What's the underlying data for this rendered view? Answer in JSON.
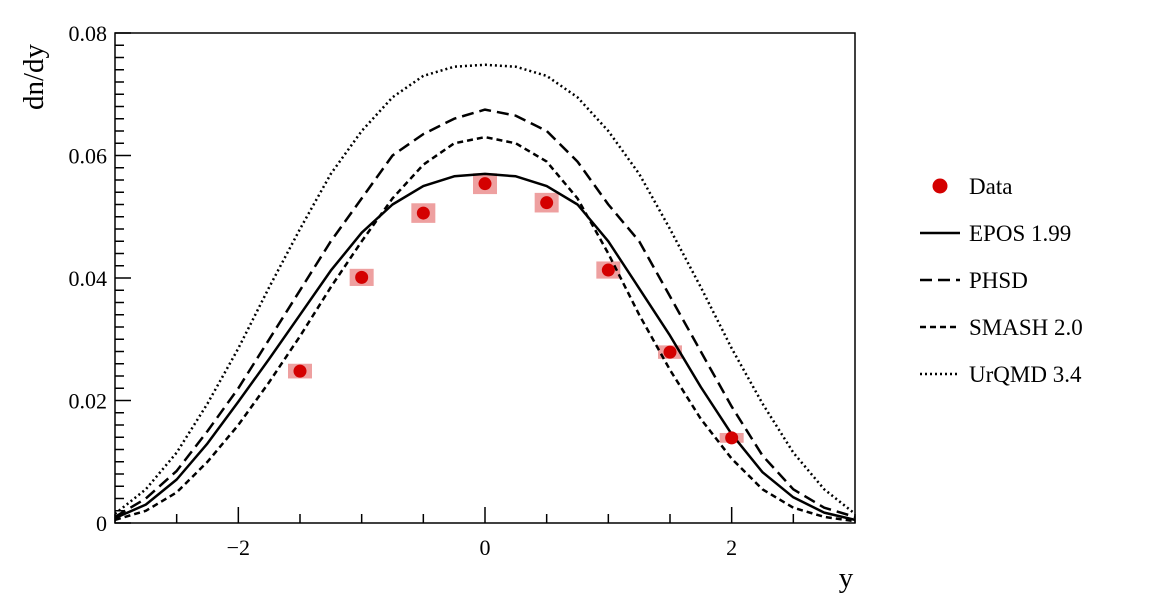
{
  "chart_data": {
    "type": "line",
    "xlabel": "y",
    "ylabel": "dn/dy",
    "xlim": [
      -3,
      3
    ],
    "ylim": [
      0,
      0.08
    ],
    "x_ticks": [
      {
        "value": -2,
        "label": "−2"
      },
      {
        "value": 0,
        "label": "0"
      },
      {
        "value": 2,
        "label": "2"
      }
    ],
    "y_ticks": [
      {
        "value": 0,
        "label": "0"
      },
      {
        "value": 0.02,
        "label": "0.02"
      },
      {
        "value": 0.04,
        "label": "0.04"
      },
      {
        "value": 0.06,
        "label": "0.06"
      },
      {
        "value": 0.08,
        "label": "0.08"
      }
    ],
    "points": {
      "name": "Data",
      "color": "#d40000",
      "syst_color": "#eea0a0",
      "x": [
        -1.5,
        -1.0,
        -0.5,
        0.0,
        0.5,
        1.0,
        1.5,
        2.0
      ],
      "y": [
        0.0248,
        0.0401,
        0.0506,
        0.0554,
        0.0523,
        0.0413,
        0.0279,
        0.0139
      ],
      "syst": [
        0.0012,
        0.0014,
        0.0016,
        0.0017,
        0.0016,
        0.0014,
        0.0011,
        0.0008
      ]
    },
    "series": [
      {
        "name": "EPOS 1.99",
        "style": "solid",
        "x": [
          -3.0,
          -2.75,
          -2.5,
          -2.25,
          -2.0,
          -1.75,
          -1.5,
          -1.25,
          -1.0,
          -0.75,
          -0.5,
          -0.25,
          0.0,
          0.25,
          0.5,
          0.75,
          1.0,
          1.25,
          1.5,
          1.75,
          2.0,
          2.25,
          2.5,
          2.75,
          3.0
        ],
        "y": [
          0.0008,
          0.003,
          0.0071,
          0.013,
          0.0198,
          0.0268,
          0.034,
          0.0412,
          0.0474,
          0.052,
          0.055,
          0.0566,
          0.057,
          0.0566,
          0.055,
          0.052,
          0.046,
          0.0383,
          0.0306,
          0.0222,
          0.0145,
          0.0083,
          0.0042,
          0.0017,
          0.0005
        ]
      },
      {
        "name": "PHSD",
        "style": "dashed",
        "x": [
          -3.0,
          -2.75,
          -2.5,
          -2.25,
          -2.0,
          -1.75,
          -1.5,
          -1.25,
          -1.0,
          -0.75,
          -0.5,
          -0.25,
          0.0,
          0.25,
          0.5,
          0.75,
          1.0,
          1.25,
          1.5,
          1.75,
          2.0,
          2.25,
          2.5,
          2.75,
          3.0
        ],
        "y": [
          0.001,
          0.004,
          0.0085,
          0.015,
          0.022,
          0.03,
          0.038,
          0.046,
          0.053,
          0.06,
          0.0635,
          0.066,
          0.0675,
          0.0665,
          0.064,
          0.059,
          0.052,
          0.046,
          0.037,
          0.028,
          0.019,
          0.011,
          0.0055,
          0.0025,
          0.001
        ]
      },
      {
        "name": "SMASH 2.0",
        "style": "short-dash",
        "x": [
          -3.0,
          -2.75,
          -2.5,
          -2.25,
          -2.0,
          -1.75,
          -1.5,
          -1.25,
          -1.0,
          -0.75,
          -0.5,
          -0.25,
          0.0,
          0.25,
          0.5,
          0.75,
          1.0,
          1.25,
          1.5,
          1.75,
          2.0,
          2.25,
          2.5,
          2.75,
          3.0
        ],
        "y": [
          0.0005,
          0.002,
          0.005,
          0.01,
          0.016,
          0.023,
          0.0305,
          0.0385,
          0.046,
          0.053,
          0.0585,
          0.062,
          0.063,
          0.062,
          0.059,
          0.053,
          0.044,
          0.034,
          0.025,
          0.017,
          0.0105,
          0.0055,
          0.0025,
          0.001,
          0.0003
        ]
      },
      {
        "name": "UrQMD 3.4",
        "style": "dotted",
        "x": [
          -3.0,
          -2.75,
          -2.5,
          -2.25,
          -2.0,
          -1.75,
          -1.5,
          -1.25,
          -1.0,
          -0.75,
          -0.5,
          -0.25,
          0.0,
          0.25,
          0.5,
          0.75,
          1.0,
          1.25,
          1.5,
          1.75,
          2.0,
          2.25,
          2.5,
          2.75,
          3.0
        ],
        "y": [
          0.0015,
          0.0055,
          0.0115,
          0.0195,
          0.0285,
          0.0385,
          0.048,
          0.057,
          0.064,
          0.0695,
          0.073,
          0.0745,
          0.0748,
          0.0745,
          0.073,
          0.0695,
          0.064,
          0.057,
          0.048,
          0.0385,
          0.0285,
          0.0195,
          0.0115,
          0.0055,
          0.0015
        ]
      }
    ],
    "legend_position": "right"
  }
}
